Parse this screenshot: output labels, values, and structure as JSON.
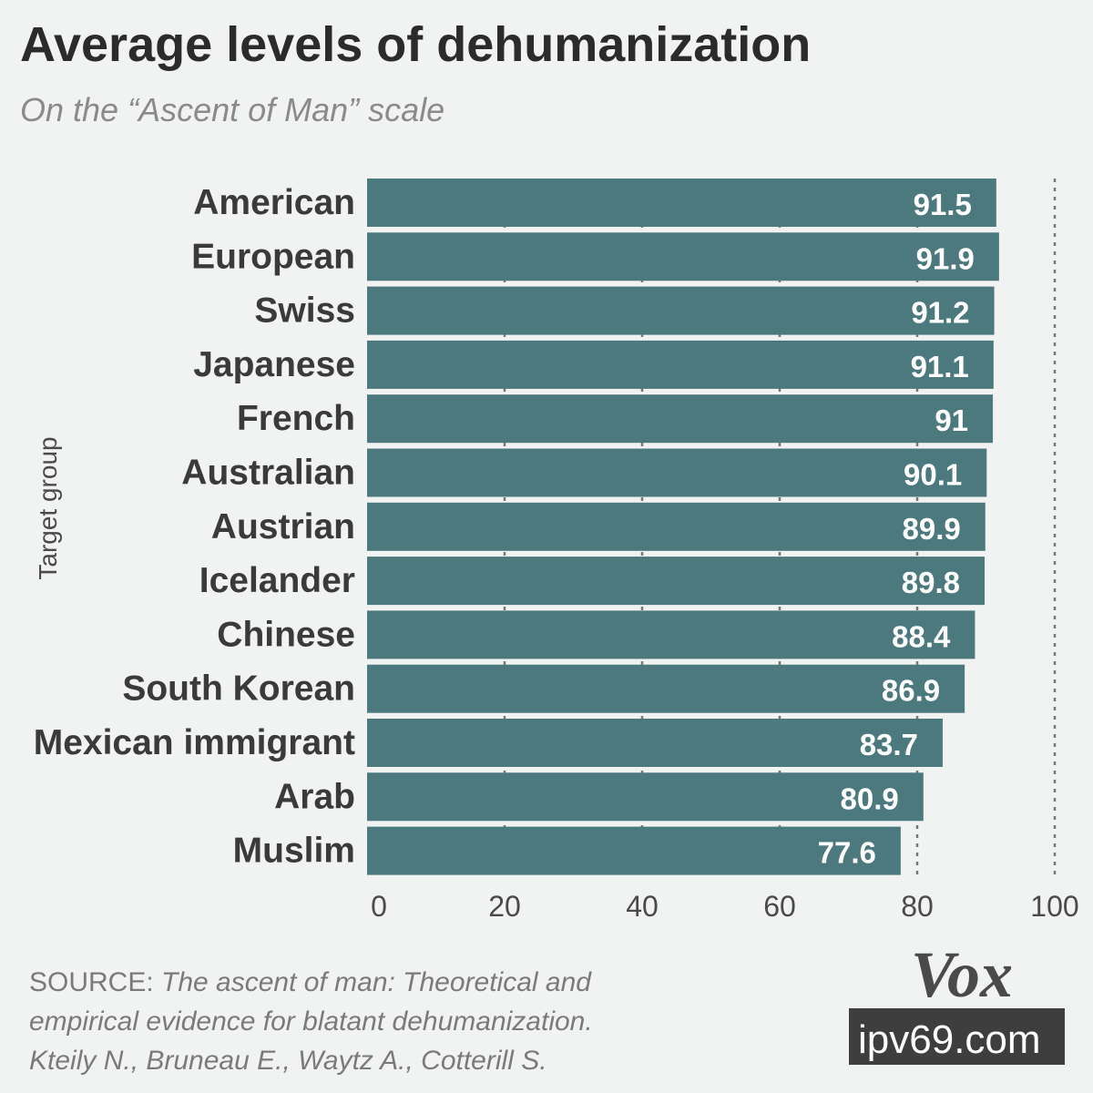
{
  "chart_data": {
    "type": "bar",
    "orientation": "horizontal",
    "title": "Average levels of dehumanization",
    "subtitle": "On the “Ascent of Man” scale",
    "ylabel": "Target group",
    "xlabel": "",
    "categories": [
      "American",
      "European",
      "Swiss",
      "Japanese",
      "French",
      "Australian",
      "Austrian",
      "Icelander",
      "Chinese",
      "South Korean",
      "Mexican immigrant",
      "Arab",
      "Muslim"
    ],
    "values": [
      91.5,
      91.9,
      91.2,
      91.1,
      91,
      90.1,
      89.9,
      89.8,
      88.4,
      86.9,
      83.7,
      80.9,
      77.6
    ],
    "value_labels": [
      "91.5",
      "91.9",
      "91.2",
      "91.1",
      "91",
      "90.1",
      "89.9",
      "89.8",
      "88.4",
      "86.9",
      "83.7",
      "80.9",
      "77.6"
    ],
    "xlim": [
      0,
      100
    ],
    "xticks": [
      0,
      20,
      40,
      60,
      80,
      100
    ],
    "xtick_labels": [
      "0",
      "20",
      "40",
      "60",
      "80",
      "100"
    ],
    "grid": "dotted vertical at ticks",
    "bar_color": "#4b797d",
    "background_color": "#f1f2f2"
  },
  "source": {
    "prefix": "SOURCE:",
    "line1": "The ascent of man: Theoretical and",
    "line2": "empirical evidence for blatant dehumanization.",
    "line3": "Kteily N., Bruneau E., Waytz A., Cotterill S."
  },
  "logo": {
    "text": "Vox"
  },
  "watermark": {
    "text": "ipv69.com"
  }
}
